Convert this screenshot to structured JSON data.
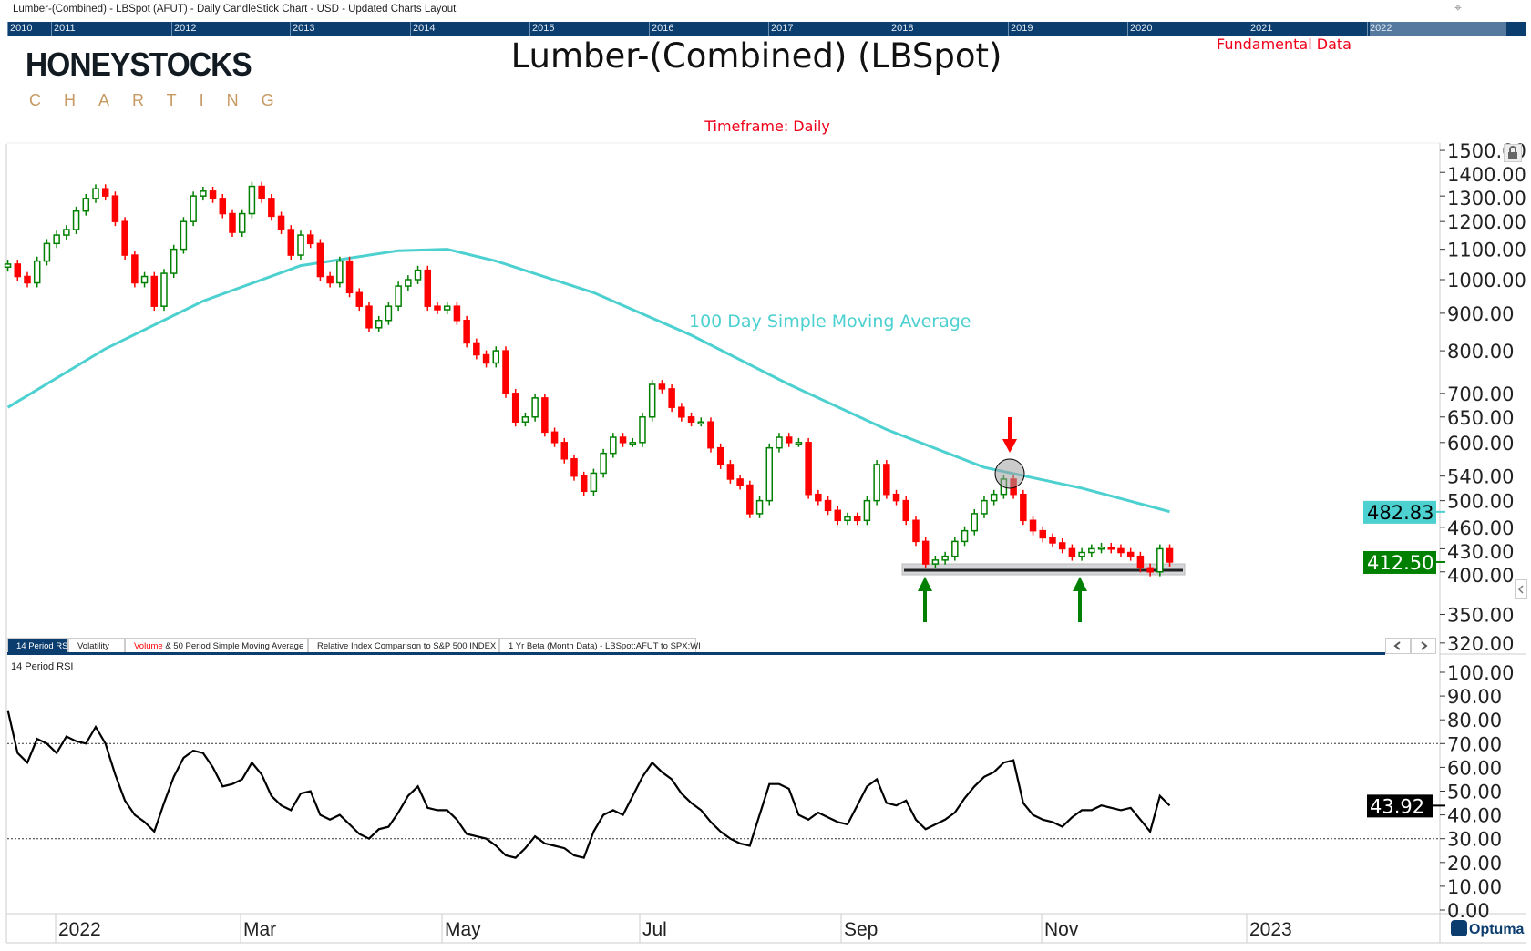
{
  "window_title": "Lumber-(Combined) - LBSpot (AFUT) - Daily CandleStick Chart - USD - Updated Charts Layout",
  "navigator": {
    "years": [
      "2010",
      "2011",
      "2012",
      "2013",
      "2014",
      "2015",
      "2016",
      "2017",
      "2018",
      "2019",
      "2020",
      "2021",
      "2022"
    ]
  },
  "logo": {
    "main": "HONEYSTOCKS",
    "sub": "CHARTING"
  },
  "chart_title": "Lumber-(Combined) (LBSpot)",
  "fundamental_link": "Fundamental Data",
  "timeframe": "Timeframe: Daily",
  "sma_label": "100 Day Simple Moving Average",
  "tabs": [
    {
      "label": "14 Period RSI",
      "active": true
    },
    {
      "label": "Volatility"
    },
    {
      "label_red": "Volume",
      "label": " & 50 Period Simple Moving Average"
    },
    {
      "label": "Relative Index Comparison to S&P 500 INDEX"
    },
    {
      "label": "1 Yr Beta (Month Data) - LBSpot:AFUT to SPX:WI"
    }
  ],
  "rsi_panel_label": "14 Period RSI",
  "brand": "Optuma",
  "colors": {
    "up": "#008000",
    "down": "#ff0000",
    "sma": "#4dd0d0",
    "nav": "#0b3d6e",
    "title_red": "#f00018"
  },
  "chart_data": [
    {
      "type": "candlestick",
      "scale": "log",
      "ylim": [
        310,
        1550
      ],
      "y_ticks": [
        "1500.00",
        "1400.00",
        "1300.00",
        "1200.00",
        "1100.00",
        "1000.00",
        "900.00",
        "800.00",
        "700.00",
        "650.00",
        "600.00",
        "540.00",
        "500.00",
        "460.00",
        "430.00",
        "400.00",
        "350.00",
        "320.00"
      ],
      "x_ticks": [
        "2022",
        "Mar",
        "May",
        "Jul",
        "Sep",
        "Nov",
        "2023"
      ],
      "closes": [
        1050,
        1010,
        990,
        1060,
        1120,
        1150,
        1170,
        1240,
        1290,
        1330,
        1300,
        1200,
        1080,
        990,
        1010,
        920,
        1020,
        1100,
        1200,
        1300,
        1320,
        1290,
        1230,
        1160,
        1230,
        1340,
        1290,
        1220,
        1170,
        1080,
        1150,
        1120,
        1010,
        990,
        1060,
        960,
        920,
        860,
        880,
        920,
        980,
        1000,
        1030,
        920,
        910,
        920,
        880,
        820,
        790,
        770,
        800,
        700,
        640,
        650,
        690,
        620,
        600,
        570,
        540,
        515,
        545,
        580,
        610,
        600,
        600,
        650,
        720,
        710,
        670,
        650,
        640,
        640,
        590,
        560,
        535,
        525,
        480,
        500,
        590,
        610,
        600,
        600,
        510,
        500,
        485,
        470,
        475,
        470,
        500,
        560,
        510,
        500,
        470,
        440,
        410,
        415,
        420,
        440,
        455,
        480,
        500,
        510,
        535,
        510,
        470,
        455,
        445,
        438,
        430,
        420,
        425,
        430,
        432,
        430,
        425,
        420,
        405,
        400,
        430,
        412.5
      ],
      "sma100": [
        [
          0,
          670
        ],
        [
          10,
          805
        ],
        [
          20,
          935
        ],
        [
          30,
          1045
        ],
        [
          40,
          1095
        ],
        [
          45,
          1100
        ],
        [
          50,
          1060
        ],
        [
          60,
          960
        ],
        [
          70,
          840
        ],
        [
          80,
          720
        ],
        [
          90,
          625
        ],
        [
          100,
          555
        ],
        [
          110,
          520
        ],
        [
          119,
          483
        ]
      ],
      "last_sma": "482.83",
      "last_price": "412.50",
      "support_level": 412.5,
      "annotations": {
        "resistance_arrow": "down",
        "support_arrows": 2
      }
    },
    {
      "type": "line",
      "title": "14 Period RSI",
      "ylim": [
        0,
        100
      ],
      "y_ticks": [
        "100.00",
        "90.00",
        "80.00",
        "70.00",
        "60.00",
        "50.00",
        "40.00",
        "30.00",
        "20.00",
        "10.00",
        "0.00"
      ],
      "guides": [
        70,
        30
      ],
      "values": [
        84,
        66,
        62,
        72,
        70,
        66,
        73,
        71,
        70,
        77,
        70,
        57,
        46,
        40,
        37,
        33,
        45,
        56,
        64,
        67,
        66,
        60,
        52,
        53,
        55,
        62,
        57,
        48,
        44,
        42,
        49,
        50,
        40,
        38,
        40,
        36,
        32,
        30,
        34,
        35,
        41,
        48,
        52,
        43,
        42,
        42,
        38,
        32,
        31,
        30,
        27,
        23,
        22,
        26,
        31,
        28,
        27,
        26,
        23,
        22,
        33,
        40,
        42,
        40,
        48,
        56,
        62,
        58,
        55,
        49,
        45,
        42,
        37,
        33,
        30,
        28,
        27,
        40,
        53,
        53,
        51,
        40,
        38,
        41,
        39,
        37,
        36,
        44,
        52,
        55,
        45,
        44,
        46,
        38,
        34,
        36,
        38,
        41,
        47,
        52,
        56,
        58,
        62,
        63,
        45,
        40,
        38,
        37,
        35,
        39,
        42,
        42,
        44,
        43,
        42,
        43,
        38,
        33,
        48,
        43.92
      ],
      "last_value": "43.92"
    }
  ]
}
